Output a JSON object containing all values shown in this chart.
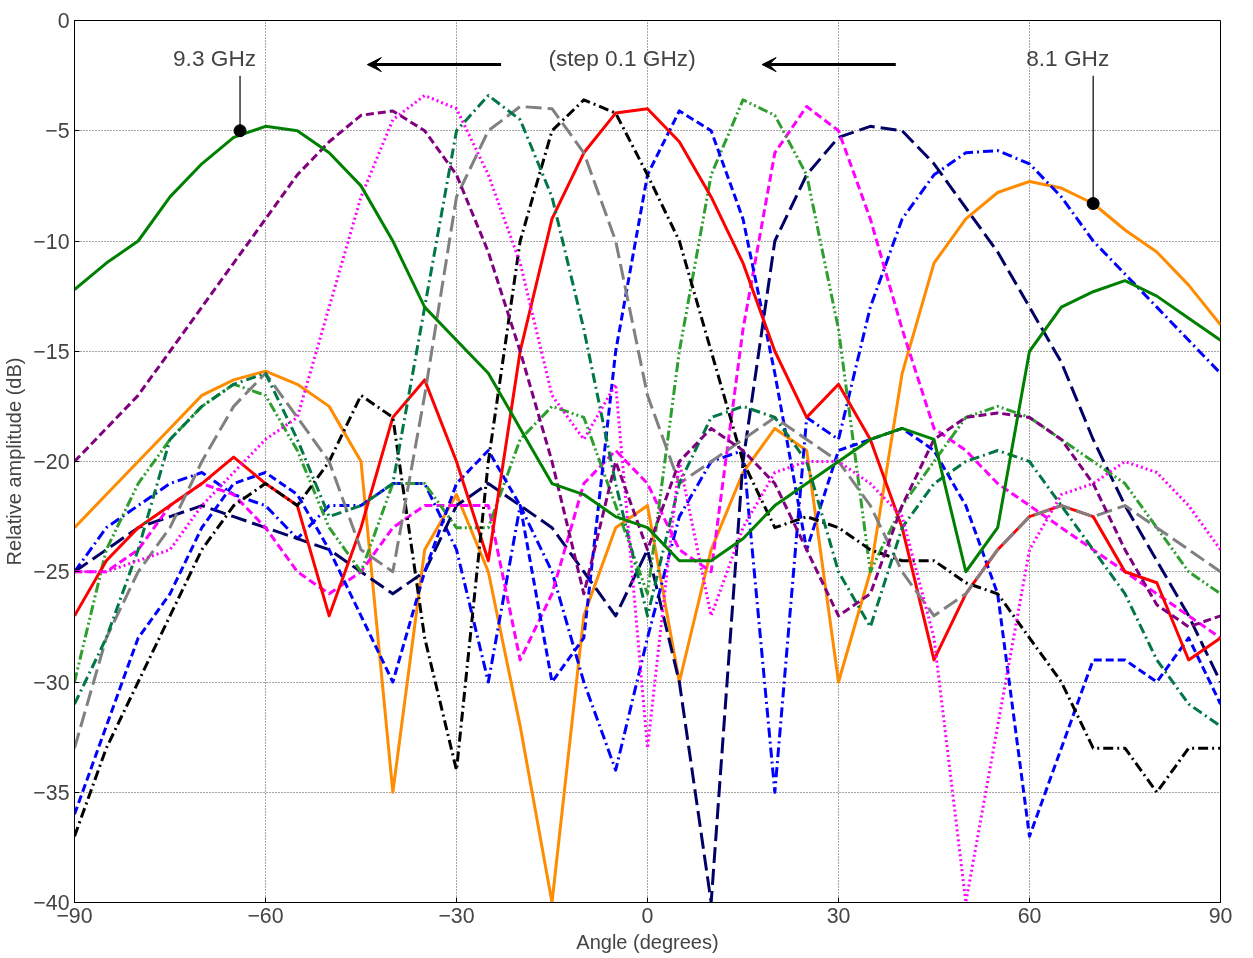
{
  "chart_data": {
    "type": "line",
    "xlabel": "Angle (degrees)",
    "ylabel": "Relative amplitude (dB)",
    "xlim": [
      -90,
      90
    ],
    "ylim": [
      -40,
      0
    ],
    "xticks": [
      -90,
      -60,
      -30,
      0,
      30,
      60,
      90
    ],
    "yticks": [
      -40,
      -35,
      -30,
      -25,
      -20,
      -15,
      -10,
      -5,
      0
    ],
    "grid": true,
    "marker": "none",
    "x": [
      -90,
      -85,
      -80,
      -75,
      -70,
      -65,
      -60,
      -55,
      -50,
      -45,
      -40,
      -35,
      -30,
      -25,
      -20,
      -15,
      -10,
      -5,
      0,
      5,
      10,
      15,
      20,
      25,
      30,
      35,
      40,
      45,
      50,
      55,
      60,
      65,
      70,
      75,
      80,
      85,
      90
    ],
    "annotations": [
      {
        "text": "9.3 GHz",
        "x": -64,
        "y": -5
      },
      {
        "text": "8.1 GHz",
        "x": 70,
        "y": -8.3
      },
      "(step 0.1 GHz)"
    ],
    "series": [
      {
        "color": "#ff8c00",
        "line_style": "solid",
        "values": [
          -23,
          -21.5,
          -20,
          -18.5,
          -17,
          -16.3,
          -15.9,
          -16.5,
          -17.5,
          -20,
          -35,
          -24,
          -21.5,
          -25,
          -32,
          -40,
          -27,
          -23,
          -22,
          -30,
          -24,
          -20.5,
          -18.5,
          -19.5,
          -30,
          -25,
          -16,
          -11,
          -9,
          -7.8,
          -7.3,
          -7.6,
          -8.3,
          -9.5,
          -10.5,
          -12,
          -13.8
        ]
      },
      {
        "color": "#0000ff",
        "line_style": "dashdot",
        "values": [
          -25,
          -23,
          -22,
          -21,
          -20.5,
          -21.5,
          -22,
          -23.5,
          -22,
          -22,
          -21,
          -21,
          -24,
          -30,
          -22,
          -25,
          -30,
          -34,
          -28,
          -22.5,
          -20,
          -19.5,
          -35,
          -18,
          -19,
          -13,
          -9,
          -7,
          -6,
          -5.9,
          -6.5,
          -8,
          -10,
          -11.5,
          -13,
          -14.5,
          -16
        ]
      },
      {
        "color": "#000066",
        "line_style": "longdash",
        "values": [
          -25,
          -24,
          -23,
          -22.5,
          -22,
          -22.5,
          -23,
          -23.5,
          -24,
          -25,
          -26,
          -25,
          -22,
          -21,
          -22,
          -23,
          -25,
          -27,
          -24,
          -30,
          -40,
          -20,
          -10,
          -7,
          -5.3,
          -4.8,
          -5,
          -6.5,
          -8.5,
          -10.5,
          -13,
          -15.5,
          -19,
          -22,
          -24.5,
          -27,
          -30
        ]
      },
      {
        "color": "#ff00ff",
        "line_style": "dashed",
        "values": [
          -25,
          -25,
          -24,
          -22,
          -21,
          -21.5,
          -23,
          -25,
          -26,
          -25,
          -23,
          -22,
          -22,
          -22,
          -29,
          -26,
          -21,
          -19.5,
          -21,
          -24,
          -25,
          -14,
          -6,
          -3.9,
          -5,
          -9,
          -14,
          -18.5,
          -19.5,
          -21,
          -22,
          -23,
          -24,
          -25,
          -26,
          -27,
          -28
        ]
      },
      {
        "color": "#2e9e2e",
        "line_style": "dashdotdot",
        "values": [
          -30,
          -24,
          -21,
          -19,
          -17.5,
          -16.5,
          -17,
          -19.5,
          -23,
          -25,
          -21,
          -21,
          -23,
          -23,
          -19,
          -17.5,
          -18,
          -22,
          -26,
          -15,
          -7,
          -3.6,
          -4.3,
          -7,
          -14,
          -25,
          -22,
          -20,
          -18,
          -17.5,
          -18,
          -19,
          -20,
          -21,
          -23,
          -25,
          -26
        ]
      },
      {
        "color": "#0000ff",
        "line_style": "dashed",
        "values": [
          -36,
          -32,
          -28,
          -26,
          -23,
          -21,
          -20.5,
          -21.5,
          -24,
          -27,
          -30,
          -25,
          -21,
          -19.5,
          -22,
          -30,
          -28,
          -15,
          -7,
          -4.1,
          -5,
          -9,
          -16,
          -24,
          -19.5,
          -19,
          -18.5,
          -19.5,
          -22,
          -26,
          -37,
          -33,
          -29,
          -29,
          -30,
          -28,
          -31
        ]
      },
      {
        "color": "#ff0000",
        "line_style": "solid",
        "values": [
          -27,
          -24.5,
          -23,
          -22,
          -21,
          -19.8,
          -21,
          -22,
          -27,
          -23,
          -18,
          -16.3,
          -20,
          -24.5,
          -15,
          -9,
          -6,
          -4.2,
          -4,
          -5.5,
          -8,
          -11,
          -15,
          -18,
          -16.5,
          -19,
          -23,
          -29,
          -26,
          -24,
          -22.5,
          -22,
          -22.5,
          -25,
          -25.5,
          -29,
          -28
        ]
      },
      {
        "color": "#000000",
        "line_style": "dashdot",
        "values": [
          -37,
          -33,
          -30,
          -27,
          -24,
          -22,
          -21,
          -22,
          -20,
          -17,
          -18,
          -28,
          -34,
          -20,
          -10,
          -5,
          -3.6,
          -4.2,
          -7,
          -10,
          -15,
          -20,
          -23,
          -22.5,
          -23,
          -24,
          -24.5,
          -24.5,
          -25.5,
          -26,
          -28,
          -30,
          -33,
          -33,
          -35,
          -33,
          -33
        ]
      },
      {
        "color": "#808080",
        "line_style": "longdash",
        "values": [
          -33,
          -28,
          -25,
          -23,
          -20,
          -17.5,
          -16,
          -18,
          -20,
          -24,
          -25,
          -17,
          -8,
          -5,
          -3.9,
          -4,
          -6,
          -10,
          -17,
          -21,
          -20,
          -19,
          -18,
          -19,
          -20,
          -22,
          -25,
          -27,
          -26,
          -24,
          -22.5,
          -22,
          -22.5,
          -22,
          -23,
          -24,
          -25
        ]
      },
      {
        "color": "#007744",
        "line_style": "dashdot",
        "values": [
          -31,
          -28,
          -24,
          -19,
          -17.5,
          -16.5,
          -16,
          -19,
          -22.5,
          -22,
          -21,
          -13,
          -5,
          -3.4,
          -4.5,
          -8,
          -14,
          -21,
          -27,
          -21,
          -18,
          -17.5,
          -18,
          -20,
          -25,
          -27.5,
          -23,
          -21,
          -20,
          -19.5,
          -20,
          -22,
          -24,
          -26,
          -29,
          -31,
          -32
        ]
      },
      {
        "color": "#ff00ff",
        "line_style": "dotted",
        "values": [
          -25,
          -25,
          -24.5,
          -24,
          -22,
          -20.5,
          -19,
          -18,
          -13,
          -8,
          -4.5,
          -3.4,
          -4,
          -7,
          -11,
          -17,
          -19,
          -16.5,
          -33,
          -20,
          -27,
          -23,
          -20.5,
          -20,
          -20,
          -21,
          -22.5,
          -28,
          -40,
          -32,
          -24,
          -21.5,
          -21,
          -20,
          -20.5,
          -22,
          -24
        ]
      },
      {
        "color": "#800080",
        "line_style": "dashed",
        "values": [
          -20,
          -18.5,
          -17,
          -15,
          -13,
          -11,
          -9,
          -7,
          -5.5,
          -4.3,
          -4.1,
          -5,
          -7,
          -10.5,
          -15,
          -20,
          -26,
          -20,
          -24,
          -20,
          -18.5,
          -19.5,
          -21,
          -24,
          -27,
          -26,
          -22,
          -19,
          -18,
          -17.8,
          -18,
          -19,
          -21,
          -24,
          -26.5,
          -27.5,
          -27
        ]
      },
      {
        "color": "#008000",
        "line_style": "solid",
        "values": [
          -12.2,
          -11,
          -10,
          -8,
          -6.5,
          -5.3,
          -4.8,
          -5,
          -6,
          -7.5,
          -10,
          -13,
          -14.5,
          -16,
          -18.5,
          -21,
          -21.5,
          -22.5,
          -23,
          -24.5,
          -24.5,
          -23.5,
          -22,
          -21,
          -20,
          -19,
          -18.5,
          -19,
          -25,
          -23,
          -15,
          -13,
          -12.3,
          -11.8,
          -12.5,
          -13.5,
          -14.5
        ]
      }
    ]
  }
}
